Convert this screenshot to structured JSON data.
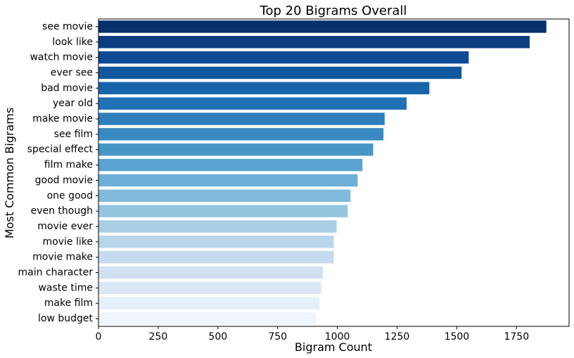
{
  "chart_data": {
    "type": "bar",
    "orientation": "horizontal",
    "title": "Top 20 Bigrams Overall",
    "xlabel": "Bigram Count",
    "ylabel": "Most Common Bigrams",
    "xlim": [
      0,
      1970
    ],
    "xticks": [
      0,
      250,
      500,
      750,
      1000,
      1250,
      1500,
      1750
    ],
    "grid": false,
    "legend": "none",
    "palette": "Blues (dark to light)",
    "categories": [
      "see movie",
      "look like",
      "watch movie",
      "ever see",
      "bad movie",
      "year old",
      "make movie",
      "see film",
      "special effect",
      "film make",
      "good movie",
      "one good",
      "even though",
      "movie ever",
      "movie like",
      "movie make",
      "main character",
      "waste time",
      "make film",
      "low budget"
    ],
    "values": [
      1875,
      1805,
      1550,
      1520,
      1385,
      1290,
      1198,
      1193,
      1150,
      1105,
      1085,
      1055,
      1043,
      997,
      985,
      985,
      940,
      932,
      925,
      912
    ],
    "colors": [
      "#08306b",
      "#0b3d7f",
      "#0e4a92",
      "#11579d",
      "#1764ab",
      "#2171b5",
      "#2e7ebc",
      "#3a8ac2",
      "#4896c8",
      "#5ba3d0",
      "#6dafd7",
      "#81badb",
      "#95c5df",
      "#a8cfe4",
      "#b8d5ea",
      "#c6dbef",
      "#d0e1f2",
      "#dae8f5",
      "#e4eff9",
      "#eef5fc"
    ]
  }
}
